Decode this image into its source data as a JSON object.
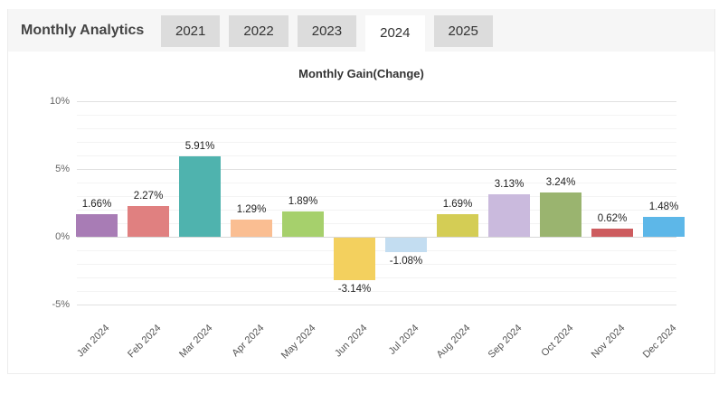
{
  "header": {
    "title": "Monthly Analytics",
    "tabs": [
      {
        "label": "2021",
        "active": false
      },
      {
        "label": "2022",
        "active": false
      },
      {
        "label": "2023",
        "active": false
      },
      {
        "label": "2024",
        "active": true
      },
      {
        "label": "2025",
        "active": false
      }
    ]
  },
  "chart_data": {
    "type": "bar",
    "title": "Monthly Gain(Change)",
    "categories": [
      "Jan 2024",
      "Feb 2024",
      "Mar 2024",
      "Apr 2024",
      "May 2024",
      "Jun 2024",
      "Jul 2024",
      "Aug 2024",
      "Sep 2024",
      "Oct 2024",
      "Nov 2024",
      "Dec 2024"
    ],
    "values": [
      1.66,
      2.27,
      5.91,
      1.29,
      1.89,
      -3.14,
      -1.08,
      1.69,
      3.13,
      3.24,
      0.62,
      1.48
    ],
    "value_labels": [
      "1.66%",
      "2.27%",
      "5.91%",
      "1.29%",
      "1.89%",
      "-3.14%",
      "-1.08%",
      "1.69%",
      "3.13%",
      "3.24%",
      "0.62%",
      "1.48%"
    ],
    "bar_colors": [
      "#a87cb5",
      "#e08080",
      "#4fb3ae",
      "#fabe92",
      "#a6d06c",
      "#f3d05e",
      "#c3ddf1",
      "#d4cd55",
      "#cabadd",
      "#9ab46f",
      "#cd5c5f",
      "#5db7e8"
    ],
    "xlabel": "",
    "ylabel": "",
    "ylim": [
      -5,
      10
    ],
    "y_ticks": [
      {
        "label": "10%",
        "value": 10
      },
      {
        "label": "5%",
        "value": 5
      },
      {
        "label": "0%",
        "value": 0
      },
      {
        "label": "-5%",
        "value": -5
      }
    ],
    "minor_grid_step": 1,
    "grid": true,
    "legend_position": "none"
  },
  "theme": {
    "header_bg": "#f6f6f6",
    "tab_bg": "#dcdcdc",
    "tab_active_bg": "#ffffff",
    "panel_border": "#ececec",
    "grid_major": "#e0e0e0",
    "grid_minor": "#f3f3f3",
    "zero_line": "#d8d8d8"
  }
}
